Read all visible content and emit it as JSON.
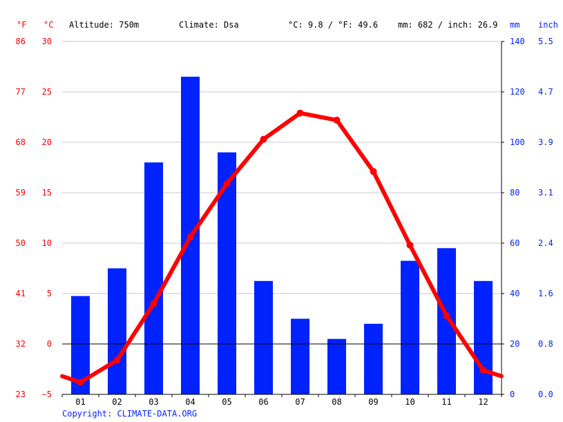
{
  "header": {
    "unit_f": "°F",
    "unit_c": "°C",
    "altitude": "Altitude: 750m",
    "climate": "Climate: Dsa",
    "temperature": "°C: 9.8 / °F: 49.6",
    "precipitation": "mm: 682 / inch: 26.9",
    "unit_mm": "mm",
    "unit_inch": "inch"
  },
  "copyright": "Copyright: CLIMATE-DATA.ORG",
  "chart_data": {
    "type": "bar",
    "categories": [
      "01",
      "02",
      "03",
      "04",
      "05",
      "06",
      "07",
      "08",
      "09",
      "10",
      "11",
      "12"
    ],
    "series": [
      {
        "type": "bar",
        "axis": "right",
        "color": "#0022ff",
        "values": [
          39,
          50,
          92,
          126,
          96,
          45,
          30,
          22,
          28,
          53,
          58,
          45
        ]
      },
      {
        "type": "line",
        "axis": "left",
        "color": "#ff0000",
        "values": [
          -3.8,
          -1.6,
          4.0,
          10.6,
          15.9,
          20.3,
          22.9,
          22.2,
          17.1,
          9.8,
          2.8,
          -2.6
        ]
      }
    ],
    "temp_line_start": -3.2,
    "temp_line_end": -3.2,
    "left_axis_c": {
      "ylim": [
        -5,
        30
      ],
      "ticks": [
        -5,
        0,
        5,
        10,
        15,
        20,
        25,
        30
      ]
    },
    "left_axis_f": {
      "ticks": [
        23,
        32,
        41,
        50,
        59,
        68,
        77,
        86
      ]
    },
    "right_axis_mm": {
      "ylim": [
        0,
        140
      ],
      "ticks": [
        0,
        20,
        40,
        60,
        80,
        100,
        120,
        140
      ]
    },
    "right_axis_inch": {
      "ticks": [
        "0.0",
        "0.8",
        "1.6",
        "2.4",
        "3.1",
        "3.9",
        "4.7",
        "5.5"
      ]
    },
    "grid": true,
    "zero_line": true
  }
}
